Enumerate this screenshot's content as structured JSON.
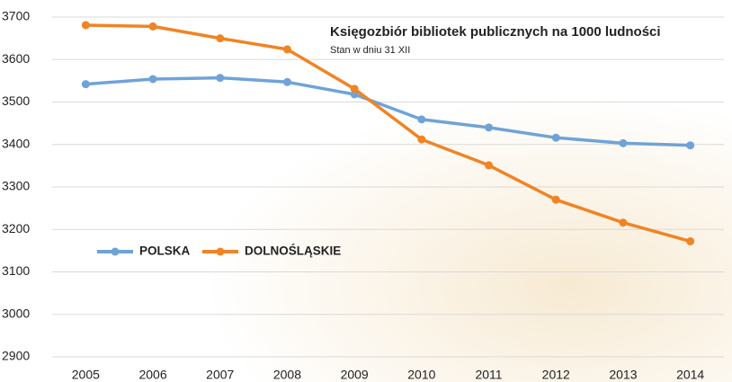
{
  "chart_data": {
    "type": "line",
    "title": "Księgozbiór bibliotek publicznych na 1000 ludności",
    "subtitle": "Stan w dniu 31 XII",
    "categories": [
      "2005",
      "2006",
      "2007",
      "2008",
      "2009",
      "2010",
      "2011",
      "2012",
      "2013",
      "2014"
    ],
    "series": [
      {
        "name": "POLSKA",
        "color": "#6fa3d8",
        "values": [
          3542,
          3554,
          3557,
          3547,
          3518,
          3459,
          3440,
          3416,
          3403,
          3398
        ]
      },
      {
        "name": "DOLNOŚLĄSKIE",
        "color": "#f08424",
        "values": [
          3681,
          3678,
          3650,
          3624,
          3531,
          3412,
          3351,
          3270,
          3216,
          3172
        ]
      }
    ],
    "ylim": [
      2900,
      3700
    ],
    "yticks": [
      2900,
      3000,
      3100,
      3200,
      3300,
      3400,
      3500,
      3600,
      3700
    ],
    "grid": true
  }
}
